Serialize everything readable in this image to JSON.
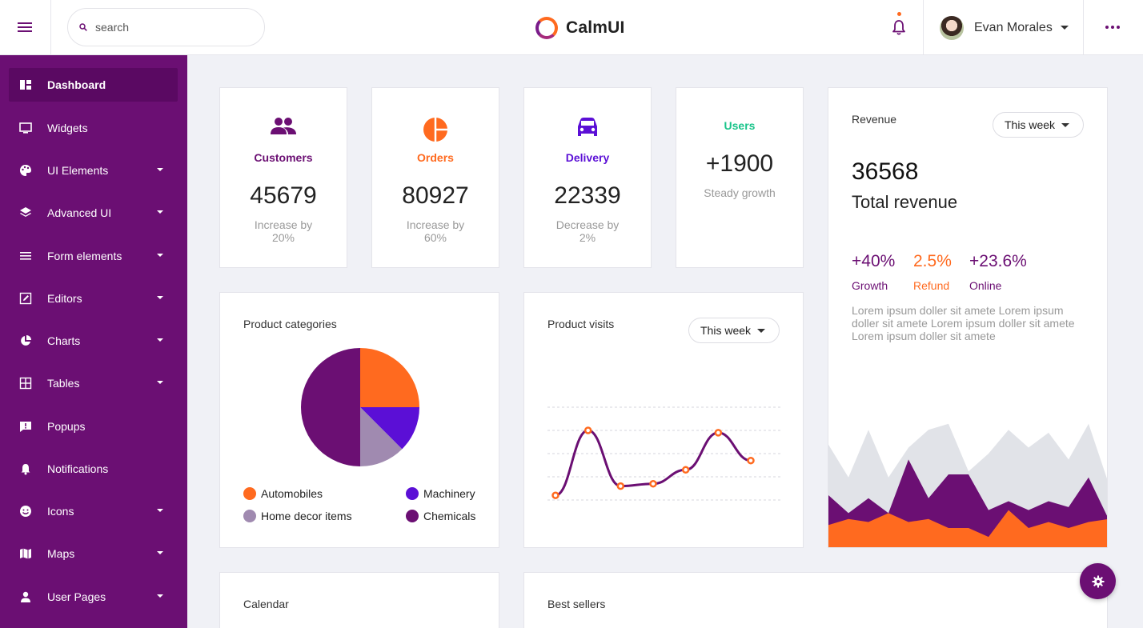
{
  "header": {
    "search_placeholder": "search",
    "brand": "CalmUI",
    "user_name": "Evan Morales"
  },
  "sidebar": {
    "items": [
      {
        "label": "Dashboard",
        "icon": "dashboard-icon",
        "active": true
      },
      {
        "label": "Widgets",
        "icon": "monitor-icon"
      },
      {
        "label": "UI Elements",
        "icon": "palette-icon",
        "expandable": true
      },
      {
        "label": "Advanced UI",
        "icon": "layers-icon",
        "expandable": true
      },
      {
        "label": "Form elements",
        "icon": "list-icon",
        "expandable": true
      },
      {
        "label": "Editors",
        "icon": "edit-icon",
        "expandable": true
      },
      {
        "label": "Charts",
        "icon": "pie-chart-icon",
        "expandable": true
      },
      {
        "label": "Tables",
        "icon": "table-icon",
        "expandable": true
      },
      {
        "label": "Popups",
        "icon": "feedback-icon"
      },
      {
        "label": "Notifications",
        "icon": "bell-icon"
      },
      {
        "label": "Icons",
        "icon": "smiley-icon",
        "expandable": true
      },
      {
        "label": "Maps",
        "icon": "map-icon",
        "expandable": true
      },
      {
        "label": "User Pages",
        "icon": "person-icon",
        "expandable": true
      }
    ]
  },
  "stats": [
    {
      "label": "Customers",
      "value": "45679",
      "sub": "Increase by 20%",
      "color": "#6b0f73",
      "icon": "people-icon"
    },
    {
      "label": "Orders",
      "value": "80927",
      "sub": "Increase by 60%",
      "color": "#ff6a1f",
      "icon": "pie-icon"
    },
    {
      "label": "Delivery",
      "value": "22339",
      "sub": "Decrease by 2%",
      "color": "#5b0fd6",
      "icon": "car-icon"
    },
    {
      "label": "Users",
      "value": "+1900",
      "sub": "Steady growth",
      "color": "#19c48a"
    }
  ],
  "revenue": {
    "title": "Revenue",
    "period": "This week",
    "total": "36568",
    "total_label": "Total revenue",
    "metrics": [
      {
        "value": "+40%",
        "label": "Growth",
        "color": "#6b0f73"
      },
      {
        "value": "2.5%",
        "label": "Refund",
        "color": "#ff6a1f"
      },
      {
        "value": "+23.6%",
        "label": "Online",
        "color": "#6b0f73"
      }
    ],
    "description": "Lorem ipsum doller sit amete Lorem ipsum doller sit amete Lorem ipsum doller sit amete Lorem ipsum doller sit amete",
    "area_chart": {
      "type": "area",
      "series": [
        {
          "color": "#e1e3e8",
          "values": [
            35,
            24,
            40,
            24,
            34,
            40,
            42,
            26,
            32,
            40,
            34,
            39,
            30,
            42,
            22
          ]
        },
        {
          "color": "#6b0f73",
          "values": [
            18,
            12,
            17,
            12,
            30,
            17,
            25,
            25,
            13,
            16,
            13,
            16,
            14,
            24,
            10
          ]
        },
        {
          "color": "#ff6a1f",
          "values": [
            8,
            10,
            9,
            12,
            9,
            10,
            7,
            7,
            4,
            13,
            7,
            9,
            7,
            9,
            10
          ]
        }
      ]
    }
  },
  "product_categories": {
    "title": "Product categories",
    "chart_data": {
      "type": "pie",
      "slices": [
        {
          "label": "Automobiles",
          "value": 25,
          "color": "#ff6a1f"
        },
        {
          "label": "Machinery",
          "value": 12.5,
          "color": "#5b0fd6"
        },
        {
          "label": "Home decor items",
          "value": 12.5,
          "color": "#a08ab0"
        },
        {
          "label": "Chemicals",
          "value": 50,
          "color": "#6b0f73"
        }
      ]
    }
  },
  "product_visits": {
    "title": "Product visits",
    "period": "This week",
    "chart_data": {
      "type": "line",
      "x": [
        1,
        2,
        3,
        4,
        5,
        6,
        7
      ],
      "values": [
        2,
        30,
        6,
        7,
        13,
        29,
        17
      ],
      "ylim": [
        0,
        40
      ],
      "grid": true,
      "line_color": "#6b0f73",
      "marker_color": "#ff6a1f"
    }
  },
  "bottom": {
    "calendar_title": "Calendar",
    "bestsellers_title": "Best sellers"
  }
}
